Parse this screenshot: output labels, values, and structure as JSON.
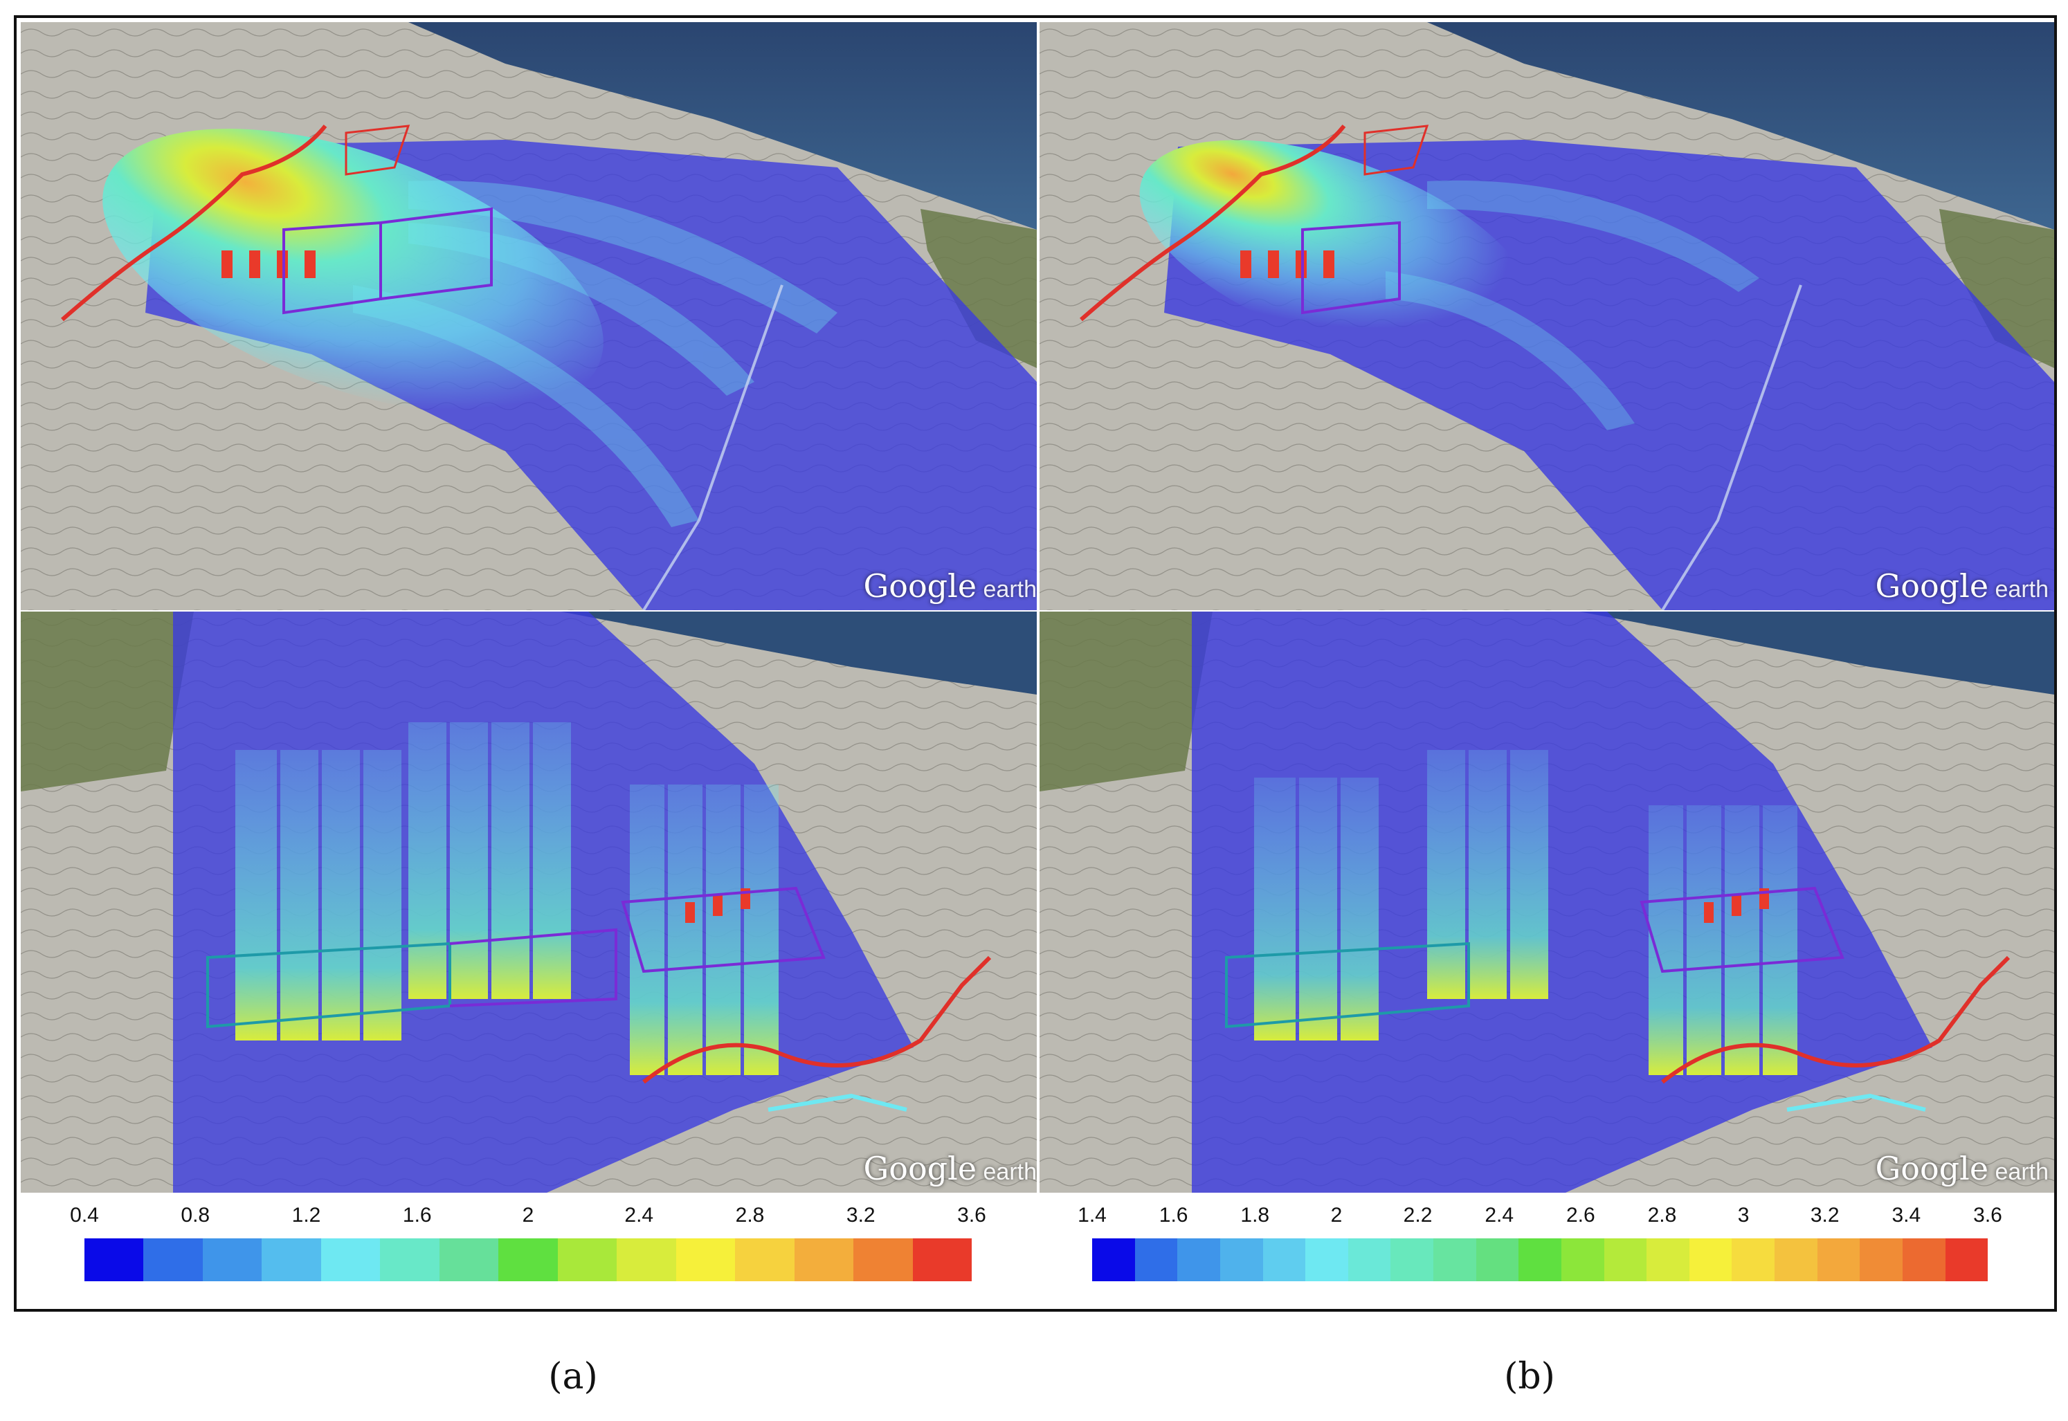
{
  "captions": {
    "a": "(a)",
    "b": "(b)"
  },
  "watermark": {
    "brand": "Google",
    "suffix": "earth"
  },
  "colors": {
    "overlay_blue": "#3a3adf",
    "terrain_gray": "#b8b6ae",
    "sea_blue": "#2d4e78",
    "boundary_purple": "#7a2bd6",
    "boundary_red": "#e0302a"
  },
  "scale_a": {
    "ticks": [
      "0.4",
      "0.8",
      "1.2",
      "1.6",
      "2",
      "2.4",
      "2.8",
      "3.2",
      "3.6"
    ],
    "cells": [
      "#0a0ae8",
      "#2f6ee8",
      "#3f95ea",
      "#54bdee",
      "#6ee8f2",
      "#68e8c8",
      "#66e09a",
      "#5fe040",
      "#a9e83a",
      "#d8ec3c",
      "#f6f03a",
      "#f6d23e",
      "#f3ae3c",
      "#ef8233",
      "#e93a2a"
    ]
  },
  "scale_b": {
    "ticks": [
      "1.4",
      "1.6",
      "1.8",
      "2",
      "2.2",
      "2.4",
      "2.6",
      "2.8",
      "3",
      "3.2",
      "3.4",
      "3.6"
    ],
    "cells": [
      "#0a0ae8",
      "#2f6ee8",
      "#3f95ea",
      "#4fb2ec",
      "#5fcdef",
      "#6ee8f2",
      "#6ae8d8",
      "#68e8bc",
      "#67e4a0",
      "#64e080",
      "#5fe040",
      "#8ce63a",
      "#b4ea3a",
      "#d8ec3c",
      "#f6f03a",
      "#f6dc3e",
      "#f4c23e",
      "#f3a83c",
      "#f08c36",
      "#ec6a30",
      "#e93a2a"
    ]
  }
}
